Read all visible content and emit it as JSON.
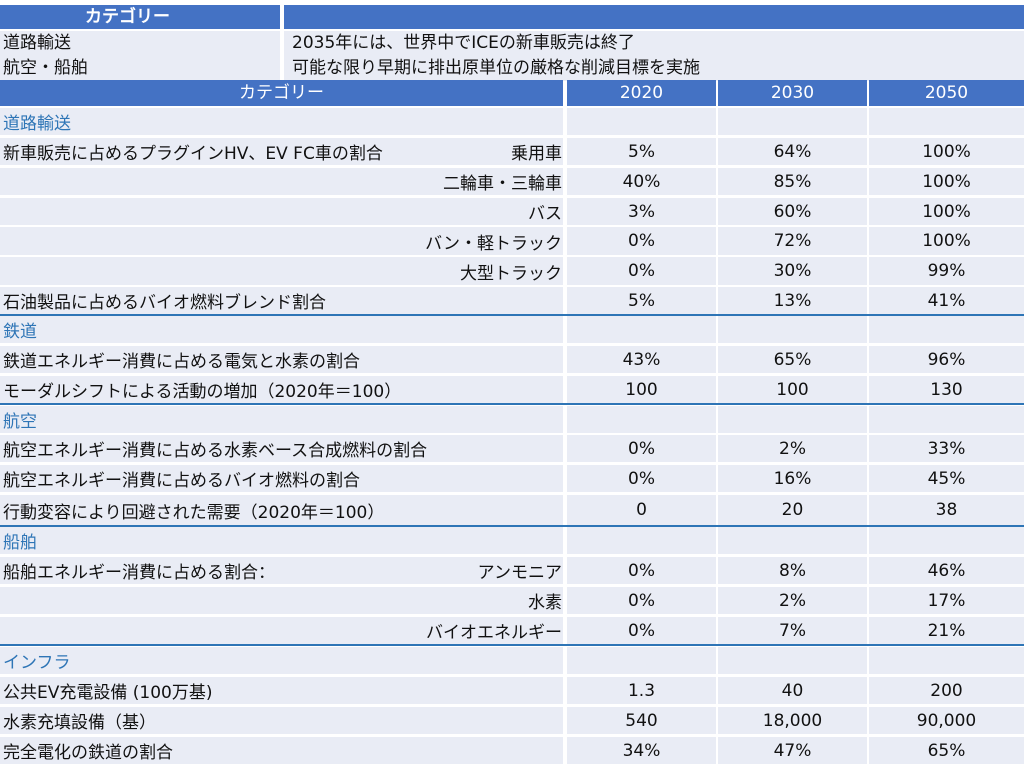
{
  "summary": {
    "header": "カテゴリー",
    "rows": [
      {
        "key": "道路輸送",
        "value": "2035年には、世界中でICEの新車販売は終了"
      },
      {
        "key": "航空・船舶",
        "value": "可能な限り早期に排出原単位の厳格な削減目標を実施"
      }
    ]
  },
  "table": {
    "columns": [
      "カテゴリー",
      "2020",
      "2030",
      "2050"
    ],
    "rows": [
      {
        "type": "category",
        "label": "道路輸送"
      },
      {
        "label": "新車販売に占めるプラグインHV、EV FC車の割合",
        "sub": "乗用車",
        "v2020": "5%",
        "v2030": "64%",
        "v2050": "100%"
      },
      {
        "label": "",
        "sub": "二輪車・三輪車",
        "v2020": "40%",
        "v2030": "85%",
        "v2050": "100%"
      },
      {
        "label": "",
        "sub": "バス",
        "v2020": "3%",
        "v2030": "60%",
        "v2050": "100%"
      },
      {
        "label": "",
        "sub": "バン・軽トラック",
        "v2020": "0%",
        "v2030": "72%",
        "v2050": "100%"
      },
      {
        "label": "",
        "sub": "大型トラック",
        "v2020": "0%",
        "v2030": "30%",
        "v2050": "99%"
      },
      {
        "label": "石油製品に占めるバイオ燃料ブレンド割合",
        "sub": "",
        "v2020": "5%",
        "v2030": "13%",
        "v2050": "41%"
      },
      {
        "type": "category",
        "label": "鉄道"
      },
      {
        "label": "鉄道エネルギー消費に占める電気と水素の割合",
        "sub": "",
        "v2020": "43%",
        "v2030": "65%",
        "v2050": "96%"
      },
      {
        "label": "モーダルシフトによる活動の増加（2020年＝100）",
        "sub": "",
        "v2020": "100",
        "v2030": "100",
        "v2050": "130"
      },
      {
        "type": "category",
        "label": "航空"
      },
      {
        "label": "航空エネルギー消費に占める水素ベース合成燃料の割合",
        "sub": "",
        "v2020": "0%",
        "v2030": "2%",
        "v2050": "33%"
      },
      {
        "label": "航空エネルギー消費に占めるバイオ燃料の割合",
        "sub": "",
        "v2020": "0%",
        "v2030": "16%",
        "v2050": "45%"
      },
      {
        "label": "行動変容により回避された需要（2020年＝100）",
        "sub": "",
        "v2020": "0",
        "v2030": "20",
        "v2050": "38"
      },
      {
        "type": "category",
        "label": "船舶"
      },
      {
        "label": "船舶エネルギー消費に占める割合：",
        "sub": "アンモニア",
        "v2020": "0%",
        "v2030": "8%",
        "v2050": "46%"
      },
      {
        "label": "",
        "sub": "水素",
        "v2020": "0%",
        "v2030": "2%",
        "v2050": "17%"
      },
      {
        "label": "",
        "sub": "バイオエネルギー",
        "v2020": "0%",
        "v2030": "7%",
        "v2050": "21%"
      },
      {
        "type": "category",
        "label": "インフラ"
      },
      {
        "label": "公共EV充電設備 (100万基)",
        "sub": "",
        "v2020": "1.3",
        "v2030": "40",
        "v2050": "200"
      },
      {
        "label": "水素充填設備（基）",
        "sub": "",
        "v2020": "540",
        "v2030": "18,000",
        "v2050": "90,000"
      },
      {
        "label": "完全電化の鉄道の割合",
        "sub": "",
        "v2020": "34%",
        "v2030": "47%",
        "v2050": "65%"
      }
    ]
  }
}
